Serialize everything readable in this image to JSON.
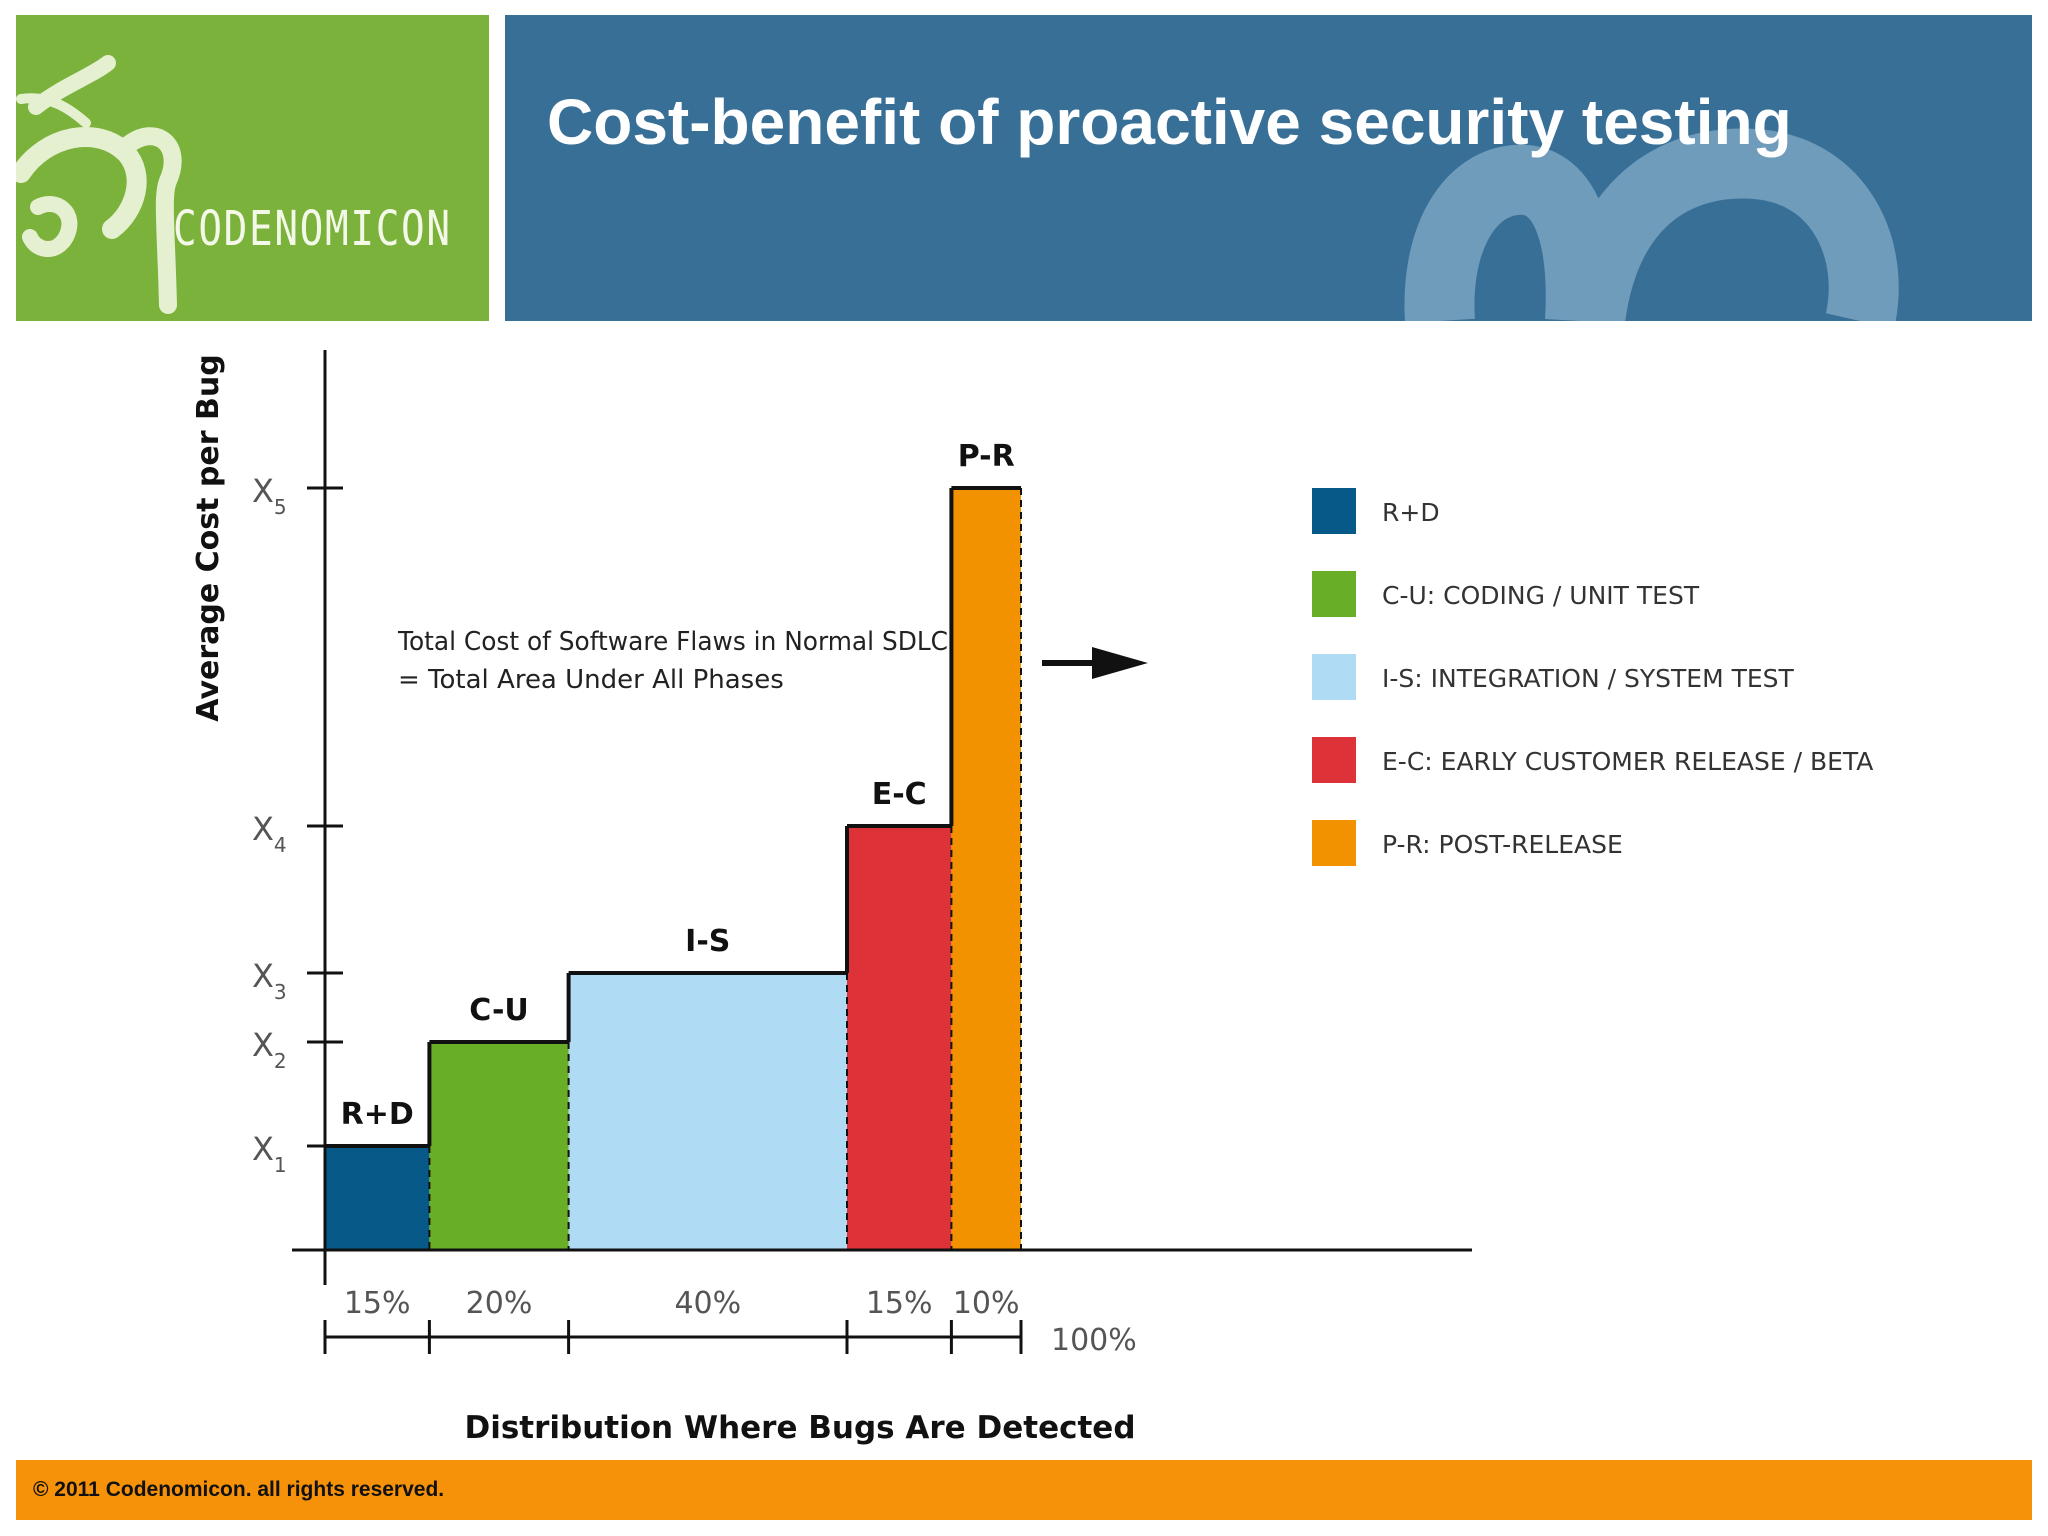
{
  "header": {
    "title": "Cost-benefit of proactive security testing",
    "logo_text": "CODENOMICON",
    "logo_color": "#7bb23c",
    "banner_color": "#386f96"
  },
  "footer": {
    "text": "© 2011 Codenomicon. all rights reserved.",
    "color": "#f6910a"
  },
  "chart_data": {
    "type": "bar",
    "title": "",
    "xlabel": "Distribution Where Bugs Are Detected",
    "ylabel": "Average Cost per Bug",
    "y_ticks": [
      {
        "label": "X",
        "sub": "1",
        "value": 1
      },
      {
        "label": "X",
        "sub": "2",
        "value": 2
      },
      {
        "label": "X",
        "sub": "3",
        "value": 3
      },
      {
        "label": "X",
        "sub": "4",
        "value": 4
      },
      {
        "label": "X",
        "sub": "5",
        "value": 5
      }
    ],
    "ylim": [
      0,
      5.6
    ],
    "bars": [
      {
        "label": "R+D",
        "share": 15,
        "share_label": "15%",
        "level": 1,
        "color": "#075a87"
      },
      {
        "label": "C-U",
        "share": 20,
        "share_label": "20%",
        "level": 2,
        "color": "#68ae26"
      },
      {
        "label": "I-S",
        "share": 40,
        "share_label": "40%",
        "level": 3,
        "color": "#afdcf4"
      },
      {
        "label": "E-C",
        "share": 15,
        "share_label": "15%",
        "level": 4,
        "color": "#dc3238"
      },
      {
        "label": "P-R",
        "share": 10,
        "share_label": "10%",
        "level": 5,
        "color": "#f39200"
      }
    ],
    "total_label": "100%",
    "legend": {
      "placement": "right",
      "items": [
        {
          "label": "R+D",
          "color": "#075a87"
        },
        {
          "label": "C-U: CODING / UNIT TEST",
          "color": "#68ae26"
        },
        {
          "label": "I-S: INTEGRATION / SYSTEM TEST",
          "color": "#afdcf4"
        },
        {
          "label": "E-C: EARLY CUSTOMER RELEASE / BETA",
          "color": "#dc3238"
        },
        {
          "label": "P-R: POST-RELEASE",
          "color": "#f39200"
        }
      ]
    },
    "annotation": {
      "line1": "Total Cost of  Software Flaws in Normal SDLC",
      "line2": "= Total Area Under All Phases"
    }
  }
}
